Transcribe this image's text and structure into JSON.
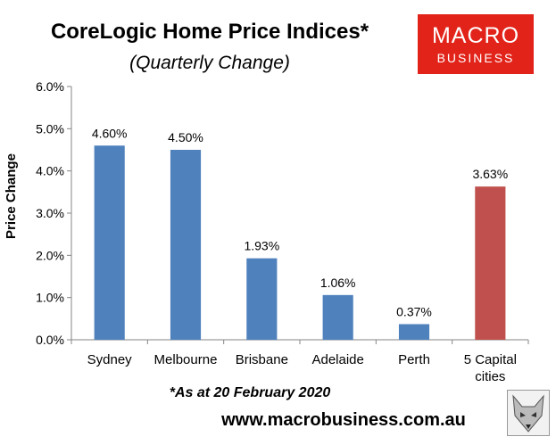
{
  "header": {
    "title": "CoreLogic Home Price Indices*",
    "subtitle": "(Quarterly Change)"
  },
  "logo": {
    "line1": "MACRO",
    "line2": "BUSINESS",
    "color": "#e2231a"
  },
  "footnote": "*As at 20 February 2020",
  "website": "www.macrobusiness.com.au",
  "chart_data": {
    "type": "bar",
    "categories": [
      "Sydney",
      "Melbourne",
      "Brisbane",
      "Adelaide",
      "Perth",
      "5 Capital cities"
    ],
    "values": [
      4.6,
      4.5,
      1.93,
      1.06,
      0.37,
      3.63
    ],
    "data_labels": [
      "4.60%",
      "4.50%",
      "1.93%",
      "1.06%",
      "0.37%",
      "3.63%"
    ],
    "colors": [
      "#4f81bd",
      "#4f81bd",
      "#4f81bd",
      "#4f81bd",
      "#4f81bd",
      "#c0504d"
    ],
    "ylabel": "Price Change",
    "ylim": [
      0,
      6
    ],
    "yticks": [
      "0.0%",
      "1.0%",
      "2.0%",
      "3.0%",
      "4.0%",
      "5.0%",
      "6.0%"
    ],
    "grid": false,
    "legend": "none"
  }
}
